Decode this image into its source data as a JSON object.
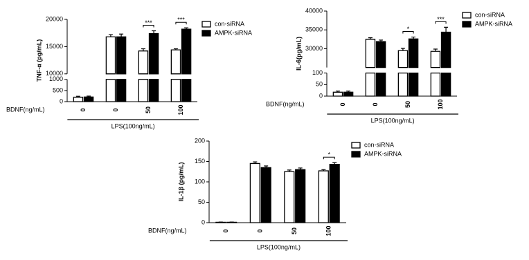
{
  "chart_data": [
    {
      "type": "bar",
      "ylabel": "TNF-α (pg/mL)",
      "x_label": "BDNF(ng/mL)",
      "group_label": "LPS(100ng/mL)",
      "categories": [
        "0",
        "0",
        "50",
        "100"
      ],
      "y_segments": [
        {
          "ylim": [
            0,
            1000
          ],
          "yticks": [
            0,
            500,
            1000
          ]
        },
        {
          "ylim": [
            10000,
            20000
          ],
          "yticks": [
            10000,
            15000,
            20000
          ]
        }
      ],
      "series": [
        {
          "name": "con-siRNA",
          "color": "#ffffff",
          "values": [
            200,
            16800,
            14200,
            14400
          ],
          "errors": [
            40,
            400,
            400,
            200
          ]
        },
        {
          "name": "AMPK-siRNA",
          "color": "#000000",
          "values": [
            210,
            16800,
            17400,
            18200
          ],
          "errors": [
            40,
            500,
            500,
            250
          ]
        }
      ],
      "significance": [
        null,
        null,
        "***",
        "***"
      ],
      "legend": "right"
    },
    {
      "type": "bar",
      "ylabel": "IL-6(pg/mL)",
      "x_label": "BDNF(ng/mL)",
      "group_label": "LPS(100ng/mL)",
      "categories": [
        "0",
        "0",
        "50",
        "100"
      ],
      "y_segments": [
        {
          "ylim": [
            0,
            100
          ],
          "yticks": [
            0,
            50,
            100
          ]
        },
        {
          "ylim": [
            25000,
            40000
          ],
          "yticks": [
            30000,
            35000,
            40000
          ]
        }
      ],
      "series": [
        {
          "name": "con-siRNA",
          "color": "#ffffff",
          "values": [
            17,
            32500,
            29500,
            29300
          ],
          "errors": [
            5,
            400,
            600,
            600
          ]
        },
        {
          "name": "AMPK-siRNA",
          "color": "#000000",
          "values": [
            17,
            31900,
            32600,
            34400
          ],
          "errors": [
            5,
            400,
            500,
            1300
          ]
        }
      ],
      "significance": [
        null,
        null,
        "*",
        "***"
      ],
      "legend": "right"
    },
    {
      "type": "bar",
      "ylabel": "IL-1β (pg/mL)",
      "x_label": "BDNF(ng/mL)",
      "group_label": "LPS(100ng/mL)",
      "categories": [
        "0",
        "0",
        "50",
        "100"
      ],
      "ylim": [
        0,
        200
      ],
      "yticks": [
        0,
        50,
        100,
        150,
        200
      ],
      "series": [
        {
          "name": "con-siRNA",
          "color": "#ffffff",
          "values": [
            1,
            145,
            125,
            127
          ],
          "errors": [
            0.5,
            4,
            4,
            3
          ]
        },
        {
          "name": "AMPK-siRNA",
          "color": "#000000",
          "values": [
            1,
            135,
            130,
            143
          ],
          "errors": [
            0.5,
            4,
            4,
            4
          ]
        }
      ],
      "significance": [
        null,
        null,
        null,
        "*"
      ],
      "legend": "right"
    }
  ]
}
